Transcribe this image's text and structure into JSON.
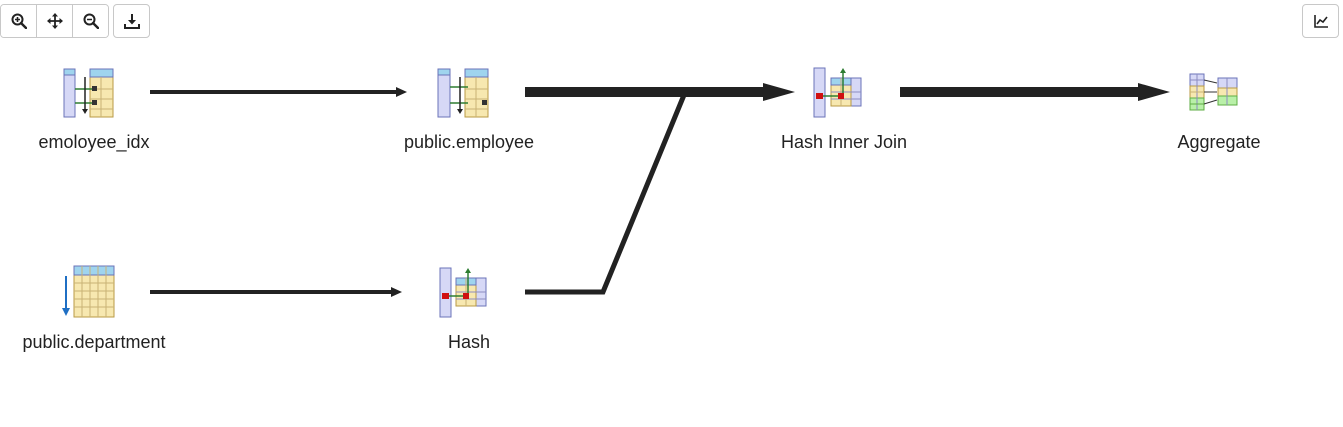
{
  "toolbar": {
    "buttons": [
      {
        "icon": "zoom-in-icon"
      },
      {
        "icon": "move-icon"
      },
      {
        "icon": "zoom-out-icon"
      },
      {
        "icon": "download-icon"
      }
    ],
    "right_button": {
      "icon": "statistics-chart-icon"
    }
  },
  "nodes": [
    {
      "id": "emoloyee_idx",
      "label": "emoloyee_idx",
      "icon": "index-scan-icon"
    },
    {
      "id": "public_employee",
      "label": "public.employee",
      "icon": "bitmap-heap-scan-icon"
    },
    {
      "id": "hash_inner_join",
      "label": "Hash Inner Join",
      "icon": "hash-join-icon"
    },
    {
      "id": "aggregate",
      "label": "Aggregate",
      "icon": "aggregate-icon"
    },
    {
      "id": "public_department",
      "label": "public.department",
      "icon": "seq-scan-icon"
    },
    {
      "id": "hash",
      "label": "Hash",
      "icon": "hash-icon"
    }
  ],
  "edges": [
    {
      "from": "emoloyee_idx",
      "to": "public_employee",
      "weight": "thin"
    },
    {
      "from": "public_employee",
      "to": "hash_inner_join",
      "weight": "thick"
    },
    {
      "from": "hash_inner_join",
      "to": "aggregate",
      "weight": "thick"
    },
    {
      "from": "public_department",
      "to": "hash",
      "weight": "thin"
    },
    {
      "from": "hash",
      "to": "hash_inner_join",
      "weight": "medium"
    }
  ]
}
